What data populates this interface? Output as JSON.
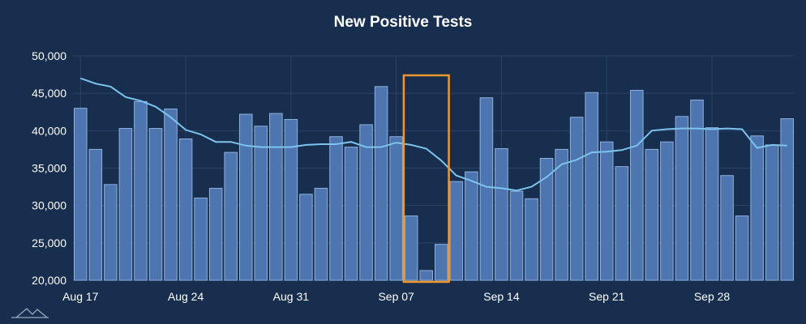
{
  "chart_data": {
    "type": "bar",
    "title": "New Positive Tests",
    "xlabel": "",
    "ylabel": "",
    "ylim": [
      20000,
      50000
    ],
    "yticks": [
      "50,000",
      "45,000",
      "40,000",
      "35,000",
      "30,000",
      "25,000",
      "20,000"
    ],
    "ytick_values": [
      50000,
      45000,
      40000,
      35000,
      30000,
      25000,
      20000
    ],
    "xticks": [
      {
        "label": "Aug 17",
        "index": 0
      },
      {
        "label": "Aug 24",
        "index": 7
      },
      {
        "label": "Aug 31",
        "index": 14
      },
      {
        "label": "Sep 07",
        "index": 21
      },
      {
        "label": "Sep 14",
        "index": 28
      },
      {
        "label": "Sep 21",
        "index": 35
      },
      {
        "label": "Sep 28",
        "index": 42
      }
    ],
    "grid": true,
    "series": [
      {
        "type": "bar",
        "values": [
          43000,
          37500,
          32800,
          40300,
          43900,
          40300,
          42900,
          38900,
          31000,
          32300,
          37100,
          42200,
          40600,
          42300,
          41500,
          31500,
          32300,
          39200,
          37800,
          40800,
          45900,
          39200,
          28600,
          21300,
          24800,
          33200,
          34500,
          44400,
          37600,
          31900,
          30900,
          36300,
          37500,
          41800,
          45100,
          38500,
          35200,
          45400,
          37500,
          38500,
          41900,
          44100,
          40400,
          34000,
          28600,
          39300,
          38100,
          41600
        ]
      },
      {
        "type": "line",
        "values": [
          47000,
          46300,
          45900,
          44500,
          44000,
          43200,
          41800,
          40100,
          39500,
          38500,
          38500,
          38000,
          37800,
          37800,
          37800,
          38100,
          38200,
          38200,
          38500,
          37800,
          37800,
          38400,
          38100,
          37600,
          36000,
          34000,
          33300,
          32500,
          32300,
          32000,
          32500,
          33800,
          35500,
          36100,
          37100,
          37200,
          37400,
          38000,
          40000,
          40200,
          40300,
          40300,
          40200,
          40300,
          40200,
          37700,
          38100,
          38000
        ]
      }
    ],
    "highlight": {
      "start_index": 22,
      "end_index": 24,
      "color": "#f0962e"
    },
    "colors": {
      "background": "#172e4f",
      "bar_fill": "#4d75b0",
      "bar_stroke": "#8fb0dc",
      "line": "#7cc3ee",
      "highlight": "#f0962e",
      "grid": "#2a4467"
    }
  }
}
